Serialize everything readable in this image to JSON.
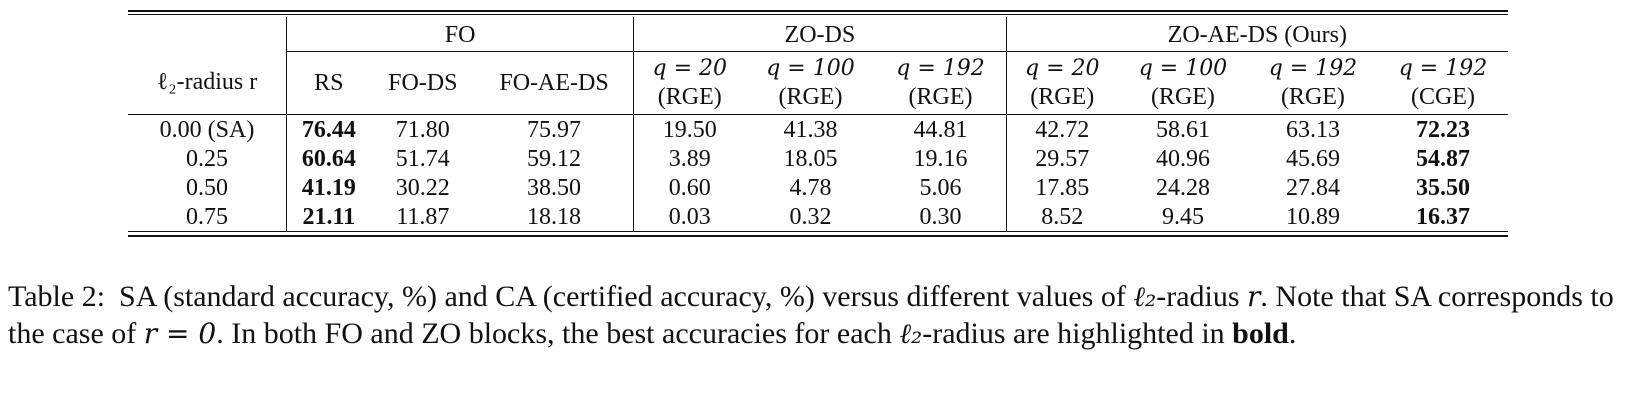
{
  "table": {
    "first_col_header": "ℓ₂-radius r",
    "groups": [
      {
        "label": "FO",
        "span": 3
      },
      {
        "label": "ZO-DS",
        "span": 3
      },
      {
        "label": "ZO-AE-DS (Ours)",
        "span": 4
      }
    ],
    "subheaders": [
      {
        "line1": "RS",
        "line2": ""
      },
      {
        "line1": "FO-DS",
        "line2": ""
      },
      {
        "line1": "FO-AE-DS",
        "line2": ""
      },
      {
        "line1": "q = 20",
        "line2": "(RGE)"
      },
      {
        "line1": "q = 100",
        "line2": "(RGE)"
      },
      {
        "line1": "q = 192",
        "line2": "(RGE)"
      },
      {
        "line1": "q = 20",
        "line2": "(RGE)"
      },
      {
        "line1": "q = 100",
        "line2": "(RGE)"
      },
      {
        "line1": "q = 192",
        "line2": "(RGE)"
      },
      {
        "line1": "q = 192",
        "line2": "(CGE)"
      }
    ],
    "rows": [
      {
        "radius": "0.00 (SA)",
        "cells": [
          "76.44",
          "71.80",
          "75.97",
          "19.50",
          "41.38",
          "44.81",
          "42.72",
          "58.61",
          "63.13",
          "72.23"
        ],
        "bold": [
          0,
          9
        ]
      },
      {
        "radius": "0.25",
        "cells": [
          "60.64",
          "51.74",
          "59.12",
          "3.89",
          "18.05",
          "19.16",
          "29.57",
          "40.96",
          "45.69",
          "54.87"
        ],
        "bold": [
          0,
          9
        ]
      },
      {
        "radius": "0.50",
        "cells": [
          "41.19",
          "30.22",
          "38.50",
          "0.60",
          "4.78",
          "5.06",
          "17.85",
          "24.28",
          "27.84",
          "35.50"
        ],
        "bold": [
          0,
          9
        ]
      },
      {
        "radius": "0.75",
        "cells": [
          "21.11",
          "11.87",
          "18.18",
          "0.03",
          "0.32",
          "0.30",
          "8.52",
          "9.45",
          "10.89",
          "16.37"
        ],
        "bold": [
          0,
          9
        ]
      }
    ]
  },
  "caption": {
    "label": "Table 2:",
    "text_1": "SA (standard accuracy, %) and CA (certified accuracy, %) versus different values of ",
    "l2": "ℓ₂",
    "text_2": "-radius ",
    "r": "r",
    "text_3": ". Note that SA corresponds to the case of ",
    "r_eq": "r = 0",
    "text_4": ". In both FO and ZO blocks, the best accuracies for each ",
    "l2_b": "ℓ₂",
    "text_5": "-radius are highlighted in ",
    "bold_word": "bold",
    "text_6": "."
  }
}
